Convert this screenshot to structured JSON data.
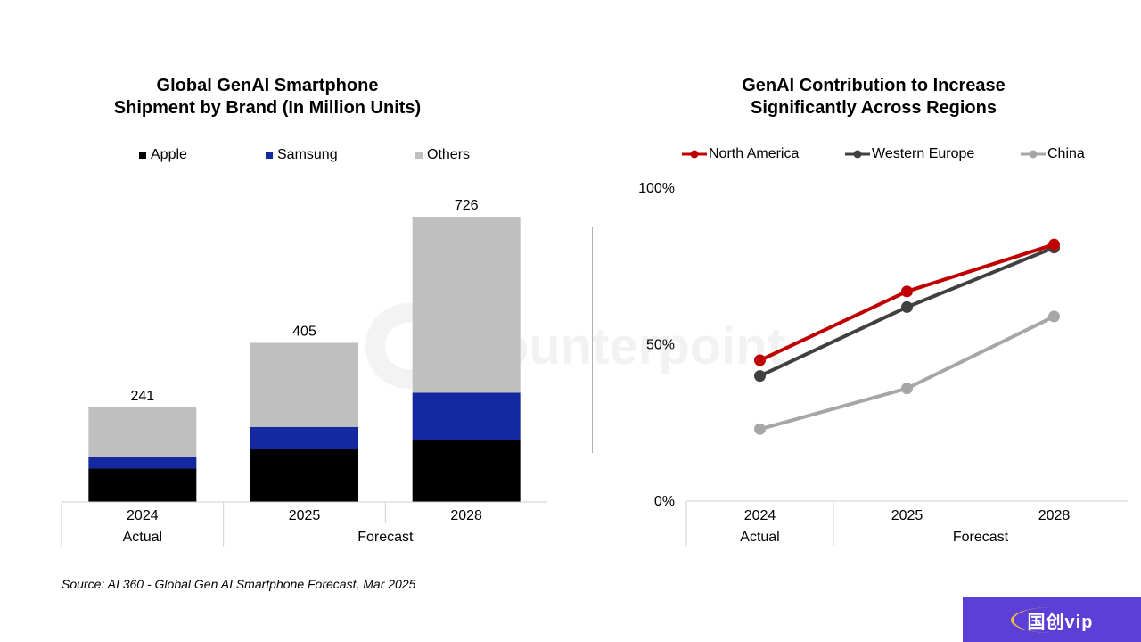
{
  "left_chart": {
    "title": "Global GenAI Smartphone\nShipment by Brand (In Million Units)",
    "legend": [
      {
        "name": "Apple",
        "color": "#000000"
      },
      {
        "name": "Samsung",
        "color": "#1428a0"
      },
      {
        "name": "Others",
        "color": "#bfbfbf"
      }
    ],
    "period_labels": [
      "Actual",
      "Forecast"
    ]
  },
  "right_chart": {
    "title": "GenAI Contribution to Increase\nSignificantly Across Regions",
    "legend": [
      {
        "name": "North America",
        "color": "#c00000"
      },
      {
        "name": "Western Europe",
        "color": "#404040"
      },
      {
        "name": "China",
        "color": "#a6a6a6"
      }
    ],
    "period_labels": [
      "Actual",
      "Forecast"
    ]
  },
  "source": "Source: AI 360 - Global Gen AI Smartphone Forecast, Mar 2025",
  "watermark": "Counterpoint",
  "badge_text": "国创vip",
  "chart_data": [
    {
      "type": "bar",
      "stacked": true,
      "title": "Global GenAI Smartphone Shipment by Brand (In Million Units)",
      "categories": [
        "2024",
        "2025",
        "2028"
      ],
      "series": [
        {
          "name": "Apple",
          "values": [
            85,
            135,
            158
          ]
        },
        {
          "name": "Samsung",
          "values": [
            31,
            56,
            120
          ]
        },
        {
          "name": "Others",
          "values": [
            125,
            214,
            448
          ]
        }
      ],
      "totals": [
        241,
        405,
        726
      ],
      "ylim": [
        0,
        726
      ],
      "legend_position": "top",
      "grid": false
    },
    {
      "type": "line",
      "title": "GenAI Contribution to Increase Significantly Across Regions",
      "categories": [
        "2024",
        "2025",
        "2028"
      ],
      "series": [
        {
          "name": "North America",
          "values": [
            45,
            67,
            82
          ]
        },
        {
          "name": "Western Europe",
          "values": [
            40,
            62,
            81
          ]
        },
        {
          "name": "China",
          "values": [
            23,
            36,
            59
          ]
        }
      ],
      "yticks": [
        "0%",
        "50%",
        "100%"
      ],
      "ylim": [
        0,
        100
      ],
      "legend_position": "top",
      "grid": false
    }
  ]
}
